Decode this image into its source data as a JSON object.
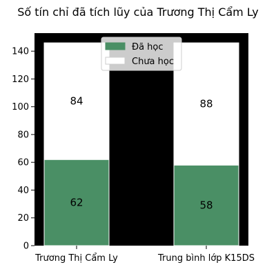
{
  "chart_data": {
    "type": "bar",
    "stacked": true,
    "title": "Số tín chỉ đã tích lũy của Trương Thị Cẩm Ly",
    "categories": [
      "Trương Thị Cẩm Ly",
      "Trung bình lớp K15DS"
    ],
    "series": [
      {
        "name": "Đã học",
        "values": [
          62,
          58
        ],
        "color": "#4a8f65"
      },
      {
        "name": "Chưa học",
        "values": [
          84,
          88
        ],
        "color": "#ffffff"
      }
    ],
    "ylim": [
      0,
      153
    ],
    "yticks": [
      0,
      20,
      40,
      60,
      80,
      100,
      120,
      140
    ],
    "plot_background": "#000000",
    "legend_position": "top-center",
    "grid": false
  }
}
